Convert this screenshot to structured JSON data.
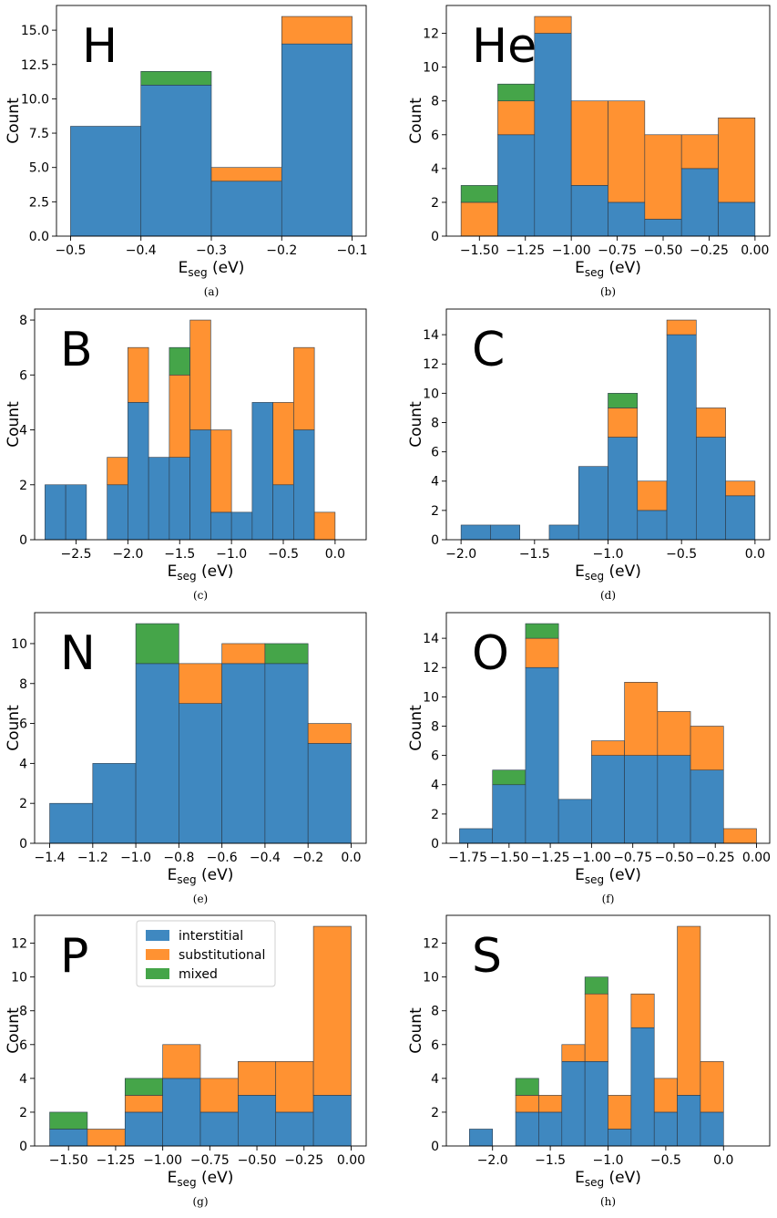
{
  "colors": {
    "interstitial": "#3f88c0",
    "substitutional": "#ff9232",
    "mixed": "#45a549"
  },
  "legend": {
    "entries": [
      {
        "key": "interstitial",
        "label": "interstitial"
      },
      {
        "key": "substitutional",
        "label": "substitutional"
      },
      {
        "key": "mixed",
        "label": "mixed"
      }
    ]
  },
  "chart_data": [
    {
      "type": "bar",
      "stacked": true,
      "letter": "H",
      "caption": "(a)",
      "xlabel": "E",
      "xlabel_sub": "seg",
      "xlabel_unit": " (eV)",
      "ylabel": "Count",
      "xlim": [
        -0.52,
        -0.08
      ],
      "ylim": [
        0,
        16.8
      ],
      "xticks": [
        -0.5,
        -0.4,
        -0.3,
        -0.2,
        -0.1
      ],
      "xtick_labels": [
        "−0.5",
        "−0.4",
        "−0.3",
        "−0.2",
        "−0.1"
      ],
      "yticks": [
        0,
        2.5,
        5,
        7.5,
        10,
        12.5,
        15
      ],
      "ytick_labels": [
        "0.0",
        "2.5",
        "5.0",
        "7.5",
        "10.0",
        "12.5",
        "15.0"
      ],
      "bins": [
        {
          "x0": -0.5,
          "x1": -0.4,
          "interstitial": 8,
          "substitutional": 0,
          "mixed": 0
        },
        {
          "x0": -0.4,
          "x1": -0.3,
          "interstitial": 11,
          "substitutional": 0,
          "mixed": 1
        },
        {
          "x0": -0.3,
          "x1": -0.2,
          "interstitial": 4,
          "substitutional": 1,
          "mixed": 0
        },
        {
          "x0": -0.2,
          "x1": -0.1,
          "interstitial": 14,
          "substitutional": 2,
          "mixed": 0
        }
      ]
    },
    {
      "type": "bar",
      "stacked": true,
      "letter": "He",
      "caption": "(b)",
      "xlabel": "E",
      "xlabel_sub": "seg",
      "xlabel_unit": " (eV)",
      "ylabel": "Count",
      "xlim": [
        -1.68,
        0.08
      ],
      "ylim": [
        0,
        13.65
      ],
      "xticks": [
        -1.5,
        -1.25,
        -1.0,
        -0.75,
        -0.5,
        -0.25,
        0.0
      ],
      "xtick_labels": [
        "−1.50",
        "−1.25",
        "−1.00",
        "−0.75",
        "−0.50",
        "−0.25",
        "0.00"
      ],
      "yticks": [
        0,
        2,
        4,
        6,
        8,
        10,
        12
      ],
      "ytick_labels": [
        "0",
        "2",
        "4",
        "6",
        "8",
        "10",
        "12"
      ],
      "bins": [
        {
          "x0": -1.6,
          "x1": -1.4,
          "interstitial": 0,
          "substitutional": 2,
          "mixed": 1
        },
        {
          "x0": -1.4,
          "x1": -1.2,
          "interstitial": 6,
          "substitutional": 2,
          "mixed": 1
        },
        {
          "x0": -1.2,
          "x1": -1.0,
          "interstitial": 12,
          "substitutional": 1,
          "mixed": 0
        },
        {
          "x0": -1.0,
          "x1": -0.8,
          "interstitial": 3,
          "substitutional": 5,
          "mixed": 0
        },
        {
          "x0": -0.8,
          "x1": -0.6,
          "interstitial": 2,
          "substitutional": 6,
          "mixed": 0
        },
        {
          "x0": -0.6,
          "x1": -0.4,
          "interstitial": 1,
          "substitutional": 5,
          "mixed": 0
        },
        {
          "x0": -0.4,
          "x1": -0.2,
          "interstitial": 4,
          "substitutional": 2,
          "mixed": 0
        },
        {
          "x0": -0.2,
          "x1": 0.0,
          "interstitial": 2,
          "substitutional": 5,
          "mixed": 0
        }
      ]
    },
    {
      "type": "bar",
      "stacked": true,
      "letter": "B",
      "caption": "(c)",
      "xlabel": "E",
      "xlabel_sub": "seg",
      "xlabel_unit": " (eV)",
      "ylabel": "Count",
      "xlim": [
        -2.9,
        0.3
      ],
      "ylim": [
        0,
        8.4
      ],
      "xticks": [
        -2.5,
        -2.0,
        -1.5,
        -1.0,
        -0.5,
        0.0
      ],
      "xtick_labels": [
        "−2.5",
        "−2.0",
        "−1.5",
        "−1.0",
        "−0.5",
        "0.0"
      ],
      "yticks": [
        0,
        2,
        4,
        6,
        8
      ],
      "ytick_labels": [
        "0",
        "2",
        "4",
        "6",
        "8"
      ],
      "bins": [
        {
          "x0": -2.8,
          "x1": -2.6,
          "interstitial": 2,
          "substitutional": 0,
          "mixed": 0
        },
        {
          "x0": -2.6,
          "x1": -2.4,
          "interstitial": 2,
          "substitutional": 0,
          "mixed": 0
        },
        {
          "x0": -2.2,
          "x1": -2.0,
          "interstitial": 2,
          "substitutional": 1,
          "mixed": 0
        },
        {
          "x0": -2.0,
          "x1": -1.8,
          "interstitial": 5,
          "substitutional": 2,
          "mixed": 0
        },
        {
          "x0": -1.8,
          "x1": -1.6,
          "interstitial": 3,
          "substitutional": 0,
          "mixed": 0
        },
        {
          "x0": -1.6,
          "x1": -1.4,
          "interstitial": 3,
          "substitutional": 3,
          "mixed": 1
        },
        {
          "x0": -1.4,
          "x1": -1.2,
          "interstitial": 4,
          "substitutional": 4,
          "mixed": 0
        },
        {
          "x0": -1.2,
          "x1": -1.0,
          "interstitial": 1,
          "substitutional": 3,
          "mixed": 0
        },
        {
          "x0": -1.0,
          "x1": -0.8,
          "interstitial": 1,
          "substitutional": 0,
          "mixed": 0
        },
        {
          "x0": -0.8,
          "x1": -0.6,
          "interstitial": 5,
          "substitutional": 0,
          "mixed": 0
        },
        {
          "x0": -0.6,
          "x1": -0.4,
          "interstitial": 2,
          "substitutional": 3,
          "mixed": 0
        },
        {
          "x0": -0.4,
          "x1": -0.2,
          "interstitial": 4,
          "substitutional": 3,
          "mixed": 0
        },
        {
          "x0": -0.2,
          "x1": 0.0,
          "interstitial": 0,
          "substitutional": 1,
          "mixed": 0
        }
      ]
    },
    {
      "type": "bar",
      "stacked": true,
      "letter": "C",
      "caption": "(d)",
      "xlabel": "E",
      "xlabel_sub": "seg",
      "xlabel_unit": " (eV)",
      "ylabel": "Count",
      "xlim": [
        -2.1,
        0.1
      ],
      "ylim": [
        0,
        15.75
      ],
      "xticks": [
        -2.0,
        -1.5,
        -1.0,
        -0.5,
        0.0
      ],
      "xtick_labels": [
        "−2.0",
        "−1.5",
        "−1.0",
        "−0.5",
        "0.0"
      ],
      "yticks": [
        0,
        2,
        4,
        6,
        8,
        10,
        12,
        14
      ],
      "ytick_labels": [
        "0",
        "2",
        "4",
        "6",
        "8",
        "10",
        "12",
        "14"
      ],
      "bins": [
        {
          "x0": -2.0,
          "x1": -1.8,
          "interstitial": 1,
          "substitutional": 0,
          "mixed": 0
        },
        {
          "x0": -1.8,
          "x1": -1.6,
          "interstitial": 1,
          "substitutional": 0,
          "mixed": 0
        },
        {
          "x0": -1.4,
          "x1": -1.2,
          "interstitial": 1,
          "substitutional": 0,
          "mixed": 0
        },
        {
          "x0": -1.2,
          "x1": -1.0,
          "interstitial": 5,
          "substitutional": 0,
          "mixed": 0
        },
        {
          "x0": -1.0,
          "x1": -0.8,
          "interstitial": 7,
          "substitutional": 2,
          "mixed": 1
        },
        {
          "x0": -0.8,
          "x1": -0.6,
          "interstitial": 2,
          "substitutional": 2,
          "mixed": 0
        },
        {
          "x0": -0.6,
          "x1": -0.4,
          "interstitial": 14,
          "substitutional": 1,
          "mixed": 0
        },
        {
          "x0": -0.4,
          "x1": -0.2,
          "interstitial": 7,
          "substitutional": 2,
          "mixed": 0
        },
        {
          "x0": -0.2,
          "x1": 0.0,
          "interstitial": 3,
          "substitutional": 1,
          "mixed": 0
        }
      ]
    },
    {
      "type": "bar",
      "stacked": true,
      "letter": "N",
      "caption": "(e)",
      "xlabel": "E",
      "xlabel_sub": "seg",
      "xlabel_unit": " (eV)",
      "ylabel": "Count",
      "xlim": [
        -1.47,
        0.07
      ],
      "ylim": [
        0,
        11.55
      ],
      "xticks": [
        -1.4,
        -1.2,
        -1.0,
        -0.8,
        -0.6,
        -0.4,
        -0.2,
        0.0
      ],
      "xtick_labels": [
        "−1.4",
        "−1.2",
        "−1.0",
        "−0.8",
        "−0.6",
        "−0.4",
        "−0.2",
        "0.0"
      ],
      "yticks": [
        0,
        2,
        4,
        6,
        8,
        10
      ],
      "ytick_labels": [
        "0",
        "2",
        "4",
        "6",
        "8",
        "10"
      ],
      "bins": [
        {
          "x0": -1.4,
          "x1": -1.2,
          "interstitial": 2,
          "substitutional": 0,
          "mixed": 0
        },
        {
          "x0": -1.2,
          "x1": -1.0,
          "interstitial": 4,
          "substitutional": 0,
          "mixed": 0
        },
        {
          "x0": -1.0,
          "x1": -0.8,
          "interstitial": 9,
          "substitutional": 0,
          "mixed": 2
        },
        {
          "x0": -0.8,
          "x1": -0.6,
          "interstitial": 7,
          "substitutional": 2,
          "mixed": 0
        },
        {
          "x0": -0.6,
          "x1": -0.4,
          "interstitial": 9,
          "substitutional": 1,
          "mixed": 0
        },
        {
          "x0": -0.4,
          "x1": -0.2,
          "interstitial": 9,
          "substitutional": 0,
          "mixed": 1
        },
        {
          "x0": -0.2,
          "x1": 0.0,
          "interstitial": 5,
          "substitutional": 1,
          "mixed": 0
        }
      ]
    },
    {
      "type": "bar",
      "stacked": true,
      "letter": "O",
      "caption": "(f)",
      "xlabel": "E",
      "xlabel_sub": "seg",
      "xlabel_unit": " (eV)",
      "ylabel": "Count",
      "xlim": [
        -1.88,
        0.08
      ],
      "ylim": [
        0,
        15.75
      ],
      "xticks": [
        -1.75,
        -1.5,
        -1.25,
        -1.0,
        -0.75,
        -0.5,
        -0.25,
        0.0
      ],
      "xtick_labels": [
        "−1.75",
        "−1.50",
        "−1.25",
        "−1.00",
        "−0.75",
        "−0.50",
        "−0.25",
        "0.00"
      ],
      "yticks": [
        0,
        2,
        4,
        6,
        8,
        10,
        12,
        14
      ],
      "ytick_labels": [
        "0",
        "2",
        "4",
        "6",
        "8",
        "10",
        "12",
        "14"
      ],
      "bins": [
        {
          "x0": -1.8,
          "x1": -1.6,
          "interstitial": 1,
          "substitutional": 0,
          "mixed": 0
        },
        {
          "x0": -1.6,
          "x1": -1.4,
          "interstitial": 4,
          "substitutional": 0,
          "mixed": 1
        },
        {
          "x0": -1.4,
          "x1": -1.2,
          "interstitial": 12,
          "substitutional": 2,
          "mixed": 1
        },
        {
          "x0": -1.2,
          "x1": -1.0,
          "interstitial": 3,
          "substitutional": 0,
          "mixed": 0
        },
        {
          "x0": -1.0,
          "x1": -0.8,
          "interstitial": 6,
          "substitutional": 1,
          "mixed": 0
        },
        {
          "x0": -0.8,
          "x1": -0.6,
          "interstitial": 6,
          "substitutional": 5,
          "mixed": 0
        },
        {
          "x0": -0.6,
          "x1": -0.4,
          "interstitial": 6,
          "substitutional": 3,
          "mixed": 0
        },
        {
          "x0": -0.4,
          "x1": -0.2,
          "interstitial": 5,
          "substitutional": 3,
          "mixed": 0
        },
        {
          "x0": -0.2,
          "x1": 0.0,
          "interstitial": 0,
          "substitutional": 1,
          "mixed": 0
        }
      ]
    },
    {
      "type": "bar",
      "stacked": true,
      "letter": "P",
      "caption": "(g)",
      "show_legend": true,
      "legend_position": "top-center",
      "xlabel": "E",
      "xlabel_sub": "seg",
      "xlabel_unit": " (eV)",
      "ylabel": "Count",
      "xlim": [
        -1.68,
        0.08
      ],
      "ylim": [
        0,
        13.65
      ],
      "xticks": [
        -1.5,
        -1.25,
        -1.0,
        -0.75,
        -0.5,
        -0.25,
        0.0
      ],
      "xtick_labels": [
        "−1.50",
        "−1.25",
        "−1.00",
        "−0.75",
        "−0.50",
        "−0.25",
        "0.00"
      ],
      "yticks": [
        0,
        2,
        4,
        6,
        8,
        10,
        12
      ],
      "ytick_labels": [
        "0",
        "2",
        "4",
        "6",
        "8",
        "10",
        "12"
      ],
      "bins": [
        {
          "x0": -1.6,
          "x1": -1.4,
          "interstitial": 1,
          "substitutional": 0,
          "mixed": 1
        },
        {
          "x0": -1.4,
          "x1": -1.2,
          "interstitial": 0,
          "substitutional": 1,
          "mixed": 0
        },
        {
          "x0": -1.2,
          "x1": -1.0,
          "interstitial": 2,
          "substitutional": 1,
          "mixed": 1
        },
        {
          "x0": -1.0,
          "x1": -0.8,
          "interstitial": 4,
          "substitutional": 2,
          "mixed": 0
        },
        {
          "x0": -0.8,
          "x1": -0.6,
          "interstitial": 2,
          "substitutional": 2,
          "mixed": 0
        },
        {
          "x0": -0.6,
          "x1": -0.4,
          "interstitial": 3,
          "substitutional": 2,
          "mixed": 0
        },
        {
          "x0": -0.4,
          "x1": -0.2,
          "interstitial": 2,
          "substitutional": 3,
          "mixed": 0
        },
        {
          "x0": -0.2,
          "x1": 0.0,
          "interstitial": 3,
          "substitutional": 10,
          "mixed": 0
        }
      ]
    },
    {
      "type": "bar",
      "stacked": true,
      "letter": "S",
      "caption": "(h)",
      "xlabel": "E",
      "xlabel_sub": "seg",
      "xlabel_unit": " (eV)",
      "ylabel": "Count",
      "xlim": [
        -2.4,
        0.4
      ],
      "ylim": [
        0,
        13.65
      ],
      "xticks": [
        -2.0,
        -1.5,
        -1.0,
        -0.5,
        0.0
      ],
      "xtick_labels": [
        "−2.0",
        "−1.5",
        "−1.0",
        "−0.5",
        "0.0"
      ],
      "yticks": [
        0,
        2,
        4,
        6,
        8,
        10,
        12
      ],
      "ytick_labels": [
        "0",
        "2",
        "4",
        "6",
        "8",
        "10",
        "12"
      ],
      "bins": [
        {
          "x0": -2.2,
          "x1": -2.0,
          "interstitial": 1,
          "substitutional": 0,
          "mixed": 0
        },
        {
          "x0": -1.8,
          "x1": -1.6,
          "interstitial": 2,
          "substitutional": 1,
          "mixed": 1
        },
        {
          "x0": -1.6,
          "x1": -1.4,
          "interstitial": 2,
          "substitutional": 1,
          "mixed": 0
        },
        {
          "x0": -1.4,
          "x1": -1.2,
          "interstitial": 5,
          "substitutional": 1,
          "mixed": 0
        },
        {
          "x0": -1.2,
          "x1": -1.0,
          "interstitial": 5,
          "substitutional": 4,
          "mixed": 1
        },
        {
          "x0": -1.0,
          "x1": -0.8,
          "interstitial": 1,
          "substitutional": 2,
          "mixed": 0
        },
        {
          "x0": -0.8,
          "x1": -0.6,
          "interstitial": 7,
          "substitutional": 2,
          "mixed": 0
        },
        {
          "x0": -0.6,
          "x1": -0.4,
          "interstitial": 2,
          "substitutional": 2,
          "mixed": 0
        },
        {
          "x0": -0.4,
          "x1": -0.2,
          "interstitial": 3,
          "substitutional": 10,
          "mixed": 0
        },
        {
          "x0": -0.2,
          "x1": 0.0,
          "interstitial": 2,
          "substitutional": 3,
          "mixed": 0
        }
      ]
    }
  ]
}
